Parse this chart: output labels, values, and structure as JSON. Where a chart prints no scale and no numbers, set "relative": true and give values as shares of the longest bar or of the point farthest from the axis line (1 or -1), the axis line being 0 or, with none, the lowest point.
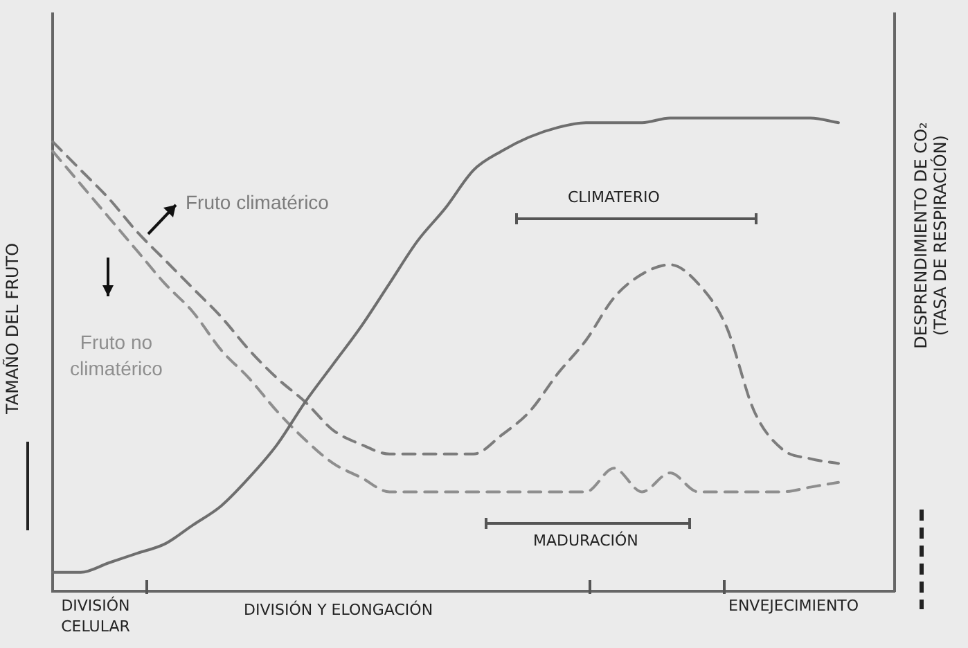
{
  "chart_data": {
    "type": "line",
    "relative": true,
    "ylabel": "TAMAÑO DEL FRUTO",
    "y2label": "DESPRENDIMIENTO DE CO₂ (TASA DE RESPIRACIÓN)",
    "categories": [
      null,
      null,
      null,
      null,
      null,
      null,
      null,
      null,
      null,
      null,
      null,
      null,
      null,
      null,
      null,
      null,
      null,
      null,
      null,
      null,
      null,
      null,
      null,
      null,
      null,
      null,
      null,
      null,
      null,
      null,
      null
    ],
    "series": [
      {
        "color": "#6e6e6e",
        "line_style": "solid",
        "values": [
          0.04,
          0.04,
          0.06,
          0.08,
          0.1,
          0.14,
          0.18,
          0.24,
          0.31,
          0.4,
          0.48,
          0.56,
          0.65,
          0.74,
          0.81,
          0.89,
          0.93,
          0.96,
          0.98,
          0.99,
          0.99,
          0.99,
          1,
          1,
          1,
          1,
          1,
          1,
          0.99,
          null,
          null
        ]
      },
      {
        "name": "Fruto climatérico",
        "color": "#7c7c7c",
        "line_style": "dashed",
        "values": [
          0.95,
          0.89,
          0.83,
          0.76,
          0.7,
          0.64,
          0.58,
          0.51,
          0.45,
          0.4,
          0.34,
          0.31,
          0.29,
          0.29,
          0.29,
          0.29,
          0.33,
          0.38,
          0.46,
          0.53,
          0.62,
          0.67,
          0.69,
          0.65,
          0.56,
          0.38,
          0.3,
          0.28,
          0.27,
          null,
          null
        ]
      },
      {
        "name": "Fruto no climatérico",
        "color": "#8e8e8e",
        "line_style": "dashed",
        "values": [
          0.93,
          0.86,
          0.79,
          0.72,
          0.65,
          0.59,
          0.51,
          0.45,
          0.38,
          0.32,
          0.27,
          0.24,
          0.21,
          0.21,
          0.21,
          0.21,
          0.21,
          0.21,
          0.21,
          0.21,
          0.26,
          0.21,
          0.25,
          0.21,
          0.21,
          0.21,
          0.21,
          0.22,
          0.23,
          null,
          null
        ]
      }
    ],
    "annotations": [
      "CLIMATERIO",
      "MADURACIÓN",
      "DIVISIÓN CELULAR",
      "DIVISIÓN Y ELONGACIÓN",
      "ENVEJECIMIENTO"
    ],
    "grid": false,
    "legend": false,
    "marker": "none"
  }
}
